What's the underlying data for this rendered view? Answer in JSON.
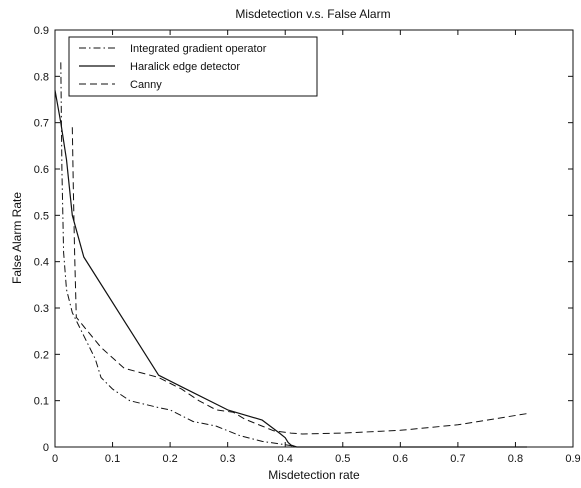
{
  "chart_data": {
    "type": "line",
    "title": "Misdetection v.s. False Alarm",
    "xlabel": "Misdetection rate",
    "ylabel": "False Alarm Rate",
    "xlim": [
      0,
      0.9
    ],
    "ylim": [
      0,
      0.9
    ],
    "x_ticks": [
      "0",
      "0.1",
      "0.2",
      "0.3",
      "0.4",
      "0.5",
      "0.6",
      "0.7",
      "0.8",
      "0.9"
    ],
    "y_ticks": [
      "0",
      "0.1",
      "0.2",
      "0.3",
      "0.4",
      "0.5",
      "0.6",
      "0.7",
      "0.8",
      "0.9"
    ],
    "grid": false,
    "legend_position": "top-left",
    "series": [
      {
        "name": "Integrated gradient operator",
        "line_style": "dash-dot",
        "points": [
          [
            0.01,
            0.83
          ],
          [
            0.012,
            0.6
          ],
          [
            0.015,
            0.42
          ],
          [
            0.02,
            0.34
          ],
          [
            0.03,
            0.29
          ],
          [
            0.05,
            0.24
          ],
          [
            0.07,
            0.19
          ],
          [
            0.08,
            0.15
          ],
          [
            0.1,
            0.125
          ],
          [
            0.13,
            0.1
          ],
          [
            0.18,
            0.085
          ],
          [
            0.2,
            0.08
          ],
          [
            0.24,
            0.055
          ],
          [
            0.28,
            0.045
          ],
          [
            0.32,
            0.025
          ],
          [
            0.36,
            0.012
          ],
          [
            0.4,
            0.005
          ],
          [
            0.41,
            0.003
          ],
          [
            0.415,
            0.001
          ],
          [
            0.42,
            0.0
          ],
          [
            0.82,
            0.0
          ]
        ]
      },
      {
        "name": "Haralick edge detector",
        "line_style": "solid",
        "points": [
          [
            0.0,
            0.77
          ],
          [
            0.01,
            0.7
          ],
          [
            0.02,
            0.62
          ],
          [
            0.03,
            0.5
          ],
          [
            0.05,
            0.41
          ],
          [
            0.18,
            0.155
          ],
          [
            0.22,
            0.13
          ],
          [
            0.3,
            0.08
          ],
          [
            0.36,
            0.058
          ],
          [
            0.39,
            0.03
          ],
          [
            0.4,
            0.02
          ],
          [
            0.405,
            0.01
          ],
          [
            0.41,
            0.004
          ],
          [
            0.42,
            0.0
          ],
          [
            0.82,
            0.0
          ]
        ]
      },
      {
        "name": "Canny",
        "line_style": "dashed",
        "points": [
          [
            0.03,
            0.69
          ],
          [
            0.032,
            0.55
          ],
          [
            0.034,
            0.42
          ],
          [
            0.037,
            0.28
          ],
          [
            0.05,
            0.26
          ],
          [
            0.08,
            0.215
          ],
          [
            0.12,
            0.17
          ],
          [
            0.18,
            0.15
          ],
          [
            0.22,
            0.125
          ],
          [
            0.25,
            0.1
          ],
          [
            0.28,
            0.08
          ],
          [
            0.31,
            0.075
          ],
          [
            0.33,
            0.06
          ],
          [
            0.36,
            0.045
          ],
          [
            0.38,
            0.035
          ],
          [
            0.41,
            0.03
          ],
          [
            0.43,
            0.028
          ],
          [
            0.5,
            0.03
          ],
          [
            0.6,
            0.036
          ],
          [
            0.7,
            0.048
          ],
          [
            0.76,
            0.06
          ],
          [
            0.82,
            0.072
          ]
        ]
      }
    ]
  }
}
